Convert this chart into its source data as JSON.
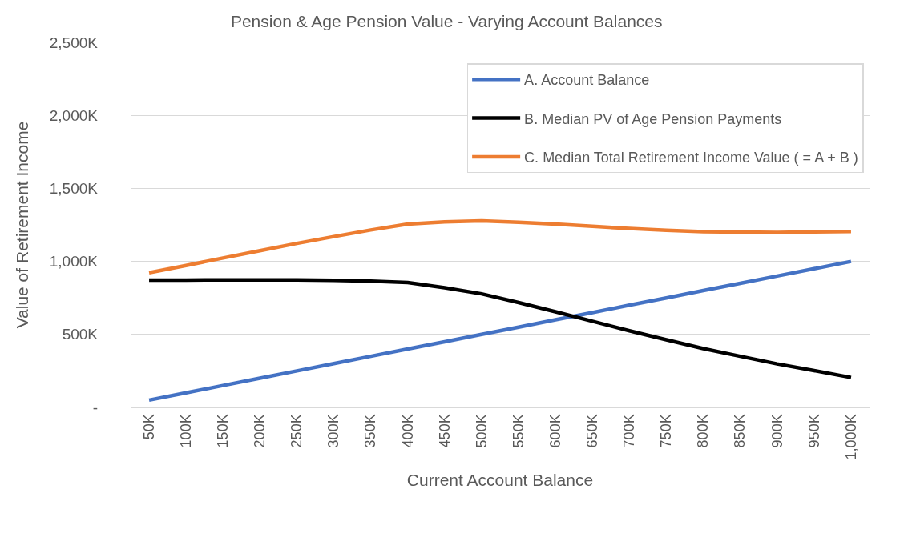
{
  "chart_data": {
    "type": "line",
    "title": "Pension & Age Pension Value - Varying Account Balances",
    "xlabel": "Current Account Balance",
    "ylabel": "Value of Retirement Income",
    "categories": [
      "50K",
      "100K",
      "150K",
      "200K",
      "250K",
      "300K",
      "350K",
      "400K",
      "450K",
      "500K",
      "550K",
      "600K",
      "650K",
      "700K",
      "750K",
      "800K",
      "850K",
      "900K",
      "950K",
      "1,000K"
    ],
    "series": [
      {
        "name": "A. Account Balance",
        "color": "#4472c4",
        "values": [
          50,
          100,
          150,
          200,
          250,
          300,
          350,
          400,
          450,
          500,
          550,
          600,
          650,
          700,
          750,
          800,
          850,
          900,
          950,
          1000
        ]
      },
      {
        "name": "B. Median PV of Age Pension Payments",
        "color": "#000000",
        "values": [
          872,
          872,
          873,
          873,
          873,
          870,
          865,
          855,
          820,
          778,
          718,
          655,
          590,
          525,
          463,
          403,
          350,
          298,
          252,
          205
        ]
      },
      {
        "name": "C. Median Total Retirement Income Value ( = A + B )",
        "color": "#ed7d31",
        "values": [
          922,
          972,
          1023,
          1073,
          1123,
          1170,
          1215,
          1255,
          1270,
          1278,
          1268,
          1255,
          1240,
          1225,
          1213,
          1203,
          1200,
          1198,
          1202,
          1205
        ]
      }
    ],
    "ylim": [
      0,
      2500
    ],
    "yticks": [
      {
        "value": 0,
        "label": "-"
      },
      {
        "value": 500,
        "label": "500K"
      },
      {
        "value": 1000,
        "label": "1,000K"
      },
      {
        "value": 1500,
        "label": "1,500K"
      },
      {
        "value": 2000,
        "label": "2,000K"
      },
      {
        "value": 2500,
        "label": "2,500K"
      }
    ],
    "grid": "y",
    "legend": "top right",
    "line_style": "solid"
  }
}
